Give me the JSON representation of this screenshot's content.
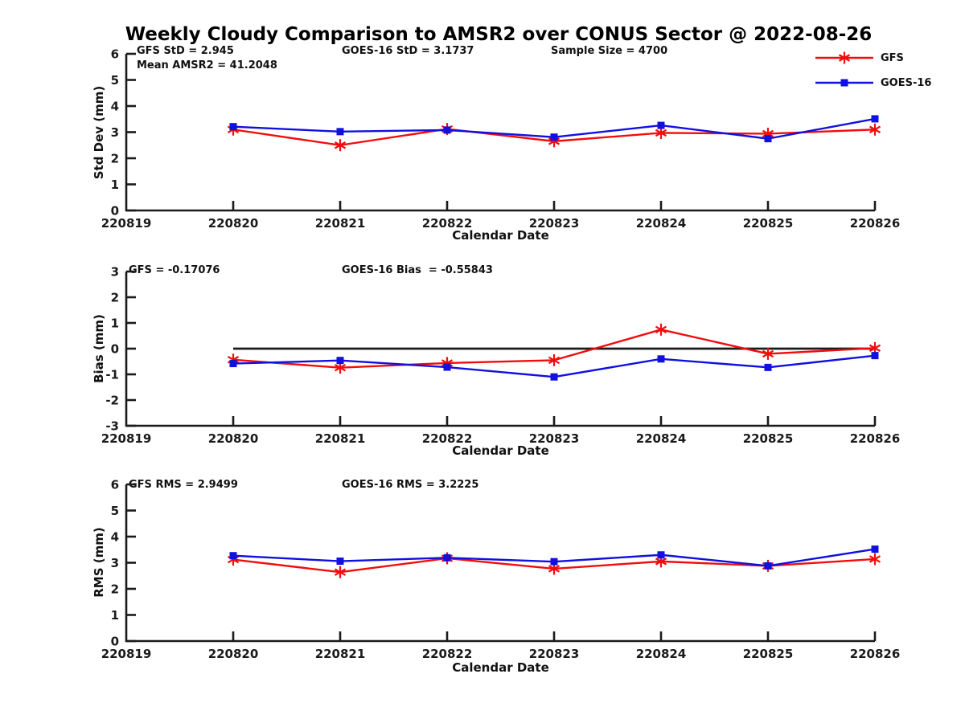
{
  "title": "Weekly Cloudy Comparison to AMSR2 over CONUS Sector @ 2022-08-26",
  "colors": {
    "gfs": "#f20c0c",
    "goes": "#1010e0",
    "axis": "#1a1a1a"
  },
  "legend": [
    {
      "label": "GFS",
      "color_key": "gfs",
      "marker": "asterisk"
    },
    {
      "label": "GOES-16",
      "color_key": "goes",
      "marker": "square"
    }
  ],
  "annotations": {
    "gfs_std": "GFS StD = 2.945",
    "mean_amsr2": "Mean AMSR2 = 41.2048",
    "goes_std": "GOES-16 StD = 3.1737",
    "sample_size": "Sample Size = 4700",
    "gfs_bias": "GFS = -0.17076",
    "goes_bias": "GOES-16 Bias  = -0.55843",
    "gfs_rms": "GFS RMS = 2.9499",
    "goes_rms": "GOES-16 RMS = 3.2225"
  },
  "chart_data": [
    {
      "type": "line",
      "ylabel": "Std Dev (mm)",
      "xlabel": "Calendar Date",
      "x_ticklabels": [
        "220819",
        "220820",
        "220821",
        "220822",
        "220823",
        "220824",
        "220825",
        "220826"
      ],
      "categories": [
        "220820",
        "220821",
        "220822",
        "220823",
        "220824",
        "220825",
        "220826"
      ],
      "ylim": [
        0,
        6
      ],
      "y_ticks": [
        0,
        1,
        2,
        3,
        4,
        5,
        6
      ],
      "zero_line": false,
      "series": [
        {
          "name": "GFS",
          "color_key": "gfs",
          "marker": "asterisk",
          "values": [
            3.1,
            2.5,
            3.12,
            2.65,
            2.97,
            2.94,
            3.1
          ]
        },
        {
          "name": "GOES-16",
          "color_key": "goes",
          "marker": "square",
          "values": [
            3.21,
            3.02,
            3.08,
            2.81,
            3.26,
            2.75,
            3.51
          ]
        }
      ]
    },
    {
      "type": "line",
      "ylabel": "Bias (mm)",
      "xlabel": "Calendar Date",
      "x_ticklabels": [
        "220819",
        "220820",
        "220821",
        "220822",
        "220823",
        "220824",
        "220825",
        "220826"
      ],
      "categories": [
        "220820",
        "220821",
        "220822",
        "220823",
        "220824",
        "220825",
        "220826"
      ],
      "ylim": [
        -3,
        3
      ],
      "y_ticks": [
        -3,
        -2,
        -1,
        0,
        1,
        2,
        3
      ],
      "zero_line": true,
      "series": [
        {
          "name": "GFS",
          "color_key": "gfs",
          "marker": "asterisk",
          "values": [
            -0.43,
            -0.74,
            -0.56,
            -0.45,
            0.74,
            -0.2,
            0.02
          ]
        },
        {
          "name": "GOES-16",
          "color_key": "goes",
          "marker": "square",
          "values": [
            -0.58,
            -0.46,
            -0.72,
            -1.1,
            -0.4,
            -0.73,
            -0.27
          ]
        }
      ]
    },
    {
      "type": "line",
      "ylabel": "RMS (mm)",
      "xlabel": "Calendar Date",
      "x_ticklabels": [
        "220819",
        "220820",
        "220821",
        "220822",
        "220823",
        "220824",
        "220825",
        "220826"
      ],
      "categories": [
        "220820",
        "220821",
        "220822",
        "220823",
        "220824",
        "220825",
        "220826"
      ],
      "ylim": [
        0,
        6
      ],
      "y_ticks": [
        0,
        1,
        2,
        3,
        4,
        5,
        6
      ],
      "zero_line": false,
      "series": [
        {
          "name": "GFS",
          "color_key": "gfs",
          "marker": "asterisk",
          "values": [
            3.12,
            2.64,
            3.17,
            2.77,
            3.05,
            2.88,
            3.14
          ]
        },
        {
          "name": "GOES-16",
          "color_key": "goes",
          "marker": "square",
          "values": [
            3.27,
            3.06,
            3.19,
            3.04,
            3.3,
            2.88,
            3.52
          ]
        }
      ]
    }
  ]
}
